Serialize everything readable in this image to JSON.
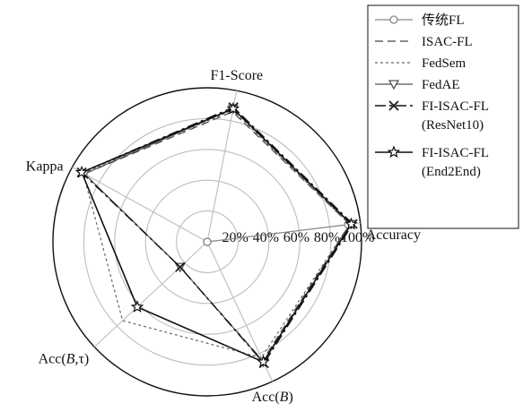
{
  "chart_data": {
    "type": "radar",
    "axes": [
      "Accuracy",
      "F1-Score",
      "Kappa",
      "Acc(B,τ)",
      "Acc(B)"
    ],
    "axis_label_parts": [
      [
        {
          "t": "Accuracy",
          "i": false
        }
      ],
      [
        {
          "t": "F1-Score",
          "i": false
        }
      ],
      [
        {
          "t": "Kappa",
          "i": false
        }
      ],
      [
        {
          "t": "Acc(",
          "i": false
        },
        {
          "t": "B",
          "i": true
        },
        {
          "t": ",τ)",
          "i": false
        }
      ],
      [
        {
          "t": "Acc(",
          "i": false
        },
        {
          "t": "B",
          "i": true
        },
        {
          "t": ")",
          "i": false
        }
      ]
    ],
    "r_ticks": [
      "20%",
      "40%",
      "60%",
      "80%",
      "100%"
    ],
    "r_tick_values": [
      20,
      40,
      60,
      80,
      100
    ],
    "rlim": [
      0,
      100
    ],
    "grid": true,
    "legend_position": "top-right",
    "series": [
      {
        "name": "传统FL",
        "name_lines": [
          "传统FL"
        ],
        "values": [
          92,
          0,
          0,
          0,
          0
        ],
        "color": "#888888",
        "dash": "",
        "width": 1.2,
        "marker": "circle"
      },
      {
        "name": "ISAC-FL",
        "name_lines": [
          "ISAC-FL"
        ],
        "values": [
          93,
          86,
          91,
          24,
          85
        ],
        "color": "#444444",
        "dash": "9,5",
        "width": 1.2,
        "marker": "none"
      },
      {
        "name": "FedSem",
        "name_lines": [
          "FedSem"
        ],
        "values": [
          93,
          87,
          92,
          75,
          83
        ],
        "color": "#666666",
        "dash": "3,3",
        "width": 1.2,
        "marker": "none"
      },
      {
        "name": "FedAE",
        "name_lines": [
          "FedAE"
        ],
        "values": [
          94,
          88,
          91,
          24,
          86
        ],
        "color": "#555555",
        "dash": "",
        "width": 1.2,
        "marker": "triangle-down"
      },
      {
        "name": "FI-ISAC-FL (ResNet10)",
        "name_lines": [
          "FI-ISAC-FL",
          "(ResNet10)"
        ],
        "values": [
          95,
          89,
          93,
          24,
          87
        ],
        "color": "#111111",
        "dash": "12,4,3,4",
        "width": 1.4,
        "marker": "x"
      },
      {
        "name": "FI-ISAC-FL (End2End)",
        "name_lines": [
          "FI-ISAC-FL",
          "(End2End)"
        ],
        "values": [
          94,
          88,
          93,
          62,
          86
        ],
        "color": "#111111",
        "dash": "",
        "width": 1.6,
        "marker": "star"
      }
    ]
  }
}
